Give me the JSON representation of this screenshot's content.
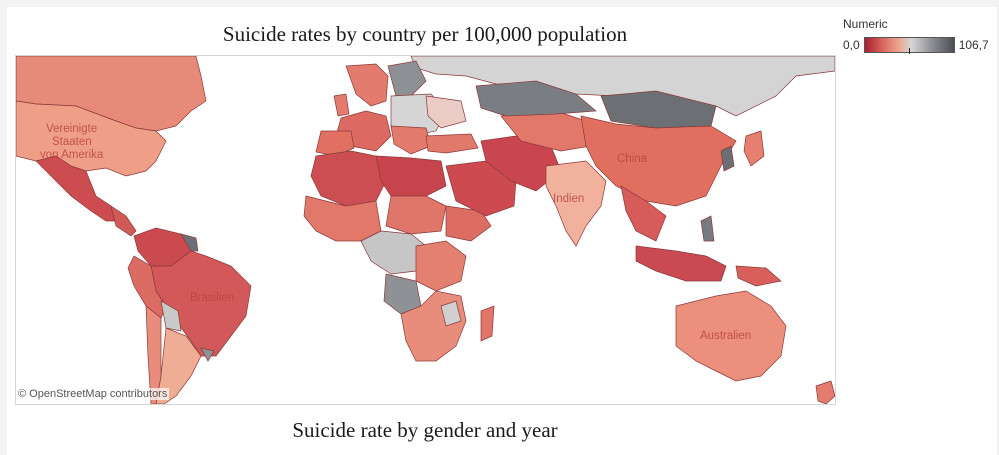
{
  "title": "Suicide rates by country per 100,000 population",
  "subtitle": "Suicide rate by gender and year",
  "legend": {
    "title": "Numeric",
    "min_label": "0,0",
    "max_label": "106,7",
    "colors": [
      "#a91e31",
      "#d9665f",
      "#eda58e",
      "#d6d6d6",
      "#8c8f93",
      "#4b4e52"
    ]
  },
  "map": {
    "attribution": "© OpenStreetMap contributors",
    "labels": {
      "usa_line1": "Vereinigte",
      "usa_line2": "Staaten",
      "usa_line3": "von Amerika",
      "china": "China",
      "india": "Indien",
      "brazil": "Brasilien",
      "australia": "Australien"
    },
    "icons": [
      "map-tooltip-icon"
    ]
  }
}
